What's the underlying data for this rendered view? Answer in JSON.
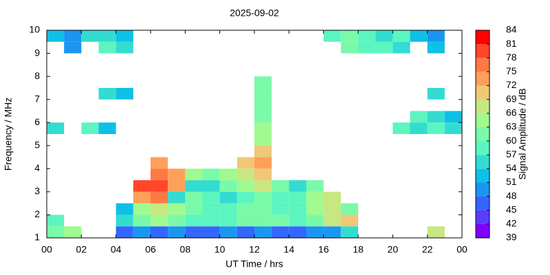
{
  "chart_data": {
    "type": "heatmap",
    "title": "2025-09-02",
    "xlabel": "UT Time / hrs",
    "ylabel": "Frequency / MHz",
    "colorbar_label": "Signal Amplitude / dB",
    "xlim": [
      0,
      24
    ],
    "ylim": [
      1,
      10
    ],
    "xticks": [
      {
        "value": 0,
        "label": "00"
      },
      {
        "value": 2,
        "label": "02"
      },
      {
        "value": 4,
        "label": "04"
      },
      {
        "value": 6,
        "label": "06"
      },
      {
        "value": 8,
        "label": "08"
      },
      10,
      12,
      14,
      16,
      18,
      20,
      22,
      {
        "value": 24,
        "label": "00"
      }
    ],
    "yticks": [
      1,
      2,
      3,
      4,
      5,
      6,
      7,
      8,
      9,
      10
    ],
    "clim": [
      39,
      84
    ],
    "cticks": [
      39,
      42,
      45,
      48,
      51,
      54,
      57,
      60,
      63,
      66,
      69,
      72,
      75,
      78,
      81,
      84
    ],
    "colors": [
      "#7f00ff",
      "#5a3cfa",
      "#3366ff",
      "#1a96f0",
      "#0fc0e6",
      "#33dcd0",
      "#5cf5c0",
      "#7afaa8",
      "#a0fa90",
      "#c8e682",
      "#f0c878",
      "#ffa05a",
      "#ff7846",
      "#ff4628",
      "#ff0000"
    ],
    "xbins": [
      0,
      1,
      2,
      3,
      4,
      5,
      6,
      7,
      8,
      9,
      10,
      11,
      12,
      13,
      14,
      15,
      16,
      17,
      18,
      19,
      20,
      21,
      22,
      23,
      24
    ],
    "ybins": [
      1,
      1.5,
      2,
      2.5,
      3,
      3.5,
      4,
      4.5,
      5,
      5.5,
      6,
      6.5,
      7,
      7.5,
      8,
      8.5,
      9,
      9.5,
      10
    ],
    "z": [
      [
        60,
        63,
        null,
        null,
        45,
        48,
        45,
        48,
        45,
        45,
        48,
        45,
        48,
        45,
        45,
        48,
        48,
        54,
        null,
        null,
        null,
        null,
        66,
        null
      ],
      [
        57,
        null,
        null,
        null,
        54,
        60,
        63,
        60,
        57,
        57,
        57,
        60,
        60,
        60,
        57,
        60,
        66,
        69,
        null,
        null,
        null,
        null,
        null,
        null
      ],
      [
        null,
        null,
        null,
        null,
        51,
        63,
        66,
        63,
        60,
        57,
        57,
        60,
        60,
        57,
        57,
        63,
        66,
        60,
        null,
        null,
        null,
        null,
        null,
        null
      ],
      [
        null,
        null,
        null,
        null,
        null,
        72,
        75,
        54,
        60,
        57,
        54,
        57,
        60,
        57,
        57,
        63,
        66,
        null,
        null,
        null,
        null,
        null,
        null,
        null
      ],
      [
        null,
        null,
        null,
        null,
        null,
        78,
        78,
        72,
        54,
        54,
        60,
        63,
        66,
        60,
        54,
        60,
        null,
        null,
        null,
        null,
        null,
        null,
        null,
        null
      ],
      [
        null,
        null,
        null,
        null,
        null,
        null,
        75,
        72,
        63,
        60,
        63,
        66,
        69,
        null,
        null,
        null,
        null,
        null,
        null,
        null,
        null,
        null,
        null,
        null
      ],
      [
        null,
        null,
        null,
        null,
        null,
        null,
        72,
        null,
        null,
        null,
        null,
        69,
        72,
        null,
        null,
        null,
        null,
        null,
        null,
        null,
        null,
        null,
        null,
        null
      ],
      [
        null,
        null,
        null,
        null,
        null,
        null,
        null,
        null,
        null,
        null,
        null,
        null,
        69,
        null,
        null,
        null,
        null,
        null,
        null,
        null,
        null,
        null,
        null,
        null
      ],
      [
        null,
        null,
        null,
        null,
        null,
        null,
        null,
        null,
        null,
        null,
        null,
        null,
        63,
        null,
        null,
        null,
        null,
        null,
        null,
        null,
        null,
        null,
        null,
        null
      ],
      [
        54,
        null,
        57,
        51,
        null,
        null,
        null,
        null,
        null,
        null,
        null,
        null,
        63,
        null,
        null,
        null,
        null,
        null,
        null,
        null,
        57,
        54,
        57,
        54
      ],
      [
        null,
        null,
        null,
        null,
        null,
        null,
        null,
        null,
        null,
        null,
        null,
        null,
        60,
        null,
        null,
        null,
        null,
        null,
        null,
        null,
        null,
        57,
        54,
        51
      ],
      [
        null,
        null,
        null,
        null,
        null,
        null,
        null,
        null,
        null,
        null,
        null,
        null,
        60,
        null,
        null,
        null,
        null,
        null,
        null,
        null,
        null,
        null,
        null,
        null
      ],
      [
        null,
        null,
        null,
        54,
        51,
        null,
        null,
        null,
        null,
        null,
        null,
        null,
        60,
        null,
        null,
        null,
        null,
        null,
        null,
        null,
        null,
        null,
        54,
        null
      ],
      [
        null,
        null,
        null,
        null,
        null,
        null,
        null,
        null,
        null,
        null,
        null,
        null,
        60,
        null,
        null,
        null,
        null,
        null,
        null,
        null,
        null,
        null,
        null,
        null
      ],
      [
        null,
        null,
        null,
        null,
        null,
        null,
        null,
        null,
        null,
        null,
        null,
        null,
        null,
        null,
        null,
        null,
        null,
        null,
        null,
        null,
        null,
        null,
        null,
        null
      ],
      [
        null,
        null,
        null,
        null,
        null,
        null,
        null,
        null,
        null,
        null,
        null,
        null,
        null,
        null,
        null,
        null,
        null,
        null,
        null,
        null,
        null,
        null,
        null,
        null
      ],
      [
        null,
        48,
        null,
        57,
        54,
        null,
        null,
        null,
        null,
        null,
        null,
        null,
        null,
        null,
        null,
        null,
        null,
        60,
        57,
        57,
        54,
        null,
        51,
        null
      ],
      [
        51,
        48,
        54,
        54,
        51,
        null,
        null,
        null,
        null,
        null,
        null,
        null,
        null,
        null,
        null,
        null,
        57,
        60,
        57,
        54,
        57,
        51,
        48,
        null
      ]
    ]
  }
}
